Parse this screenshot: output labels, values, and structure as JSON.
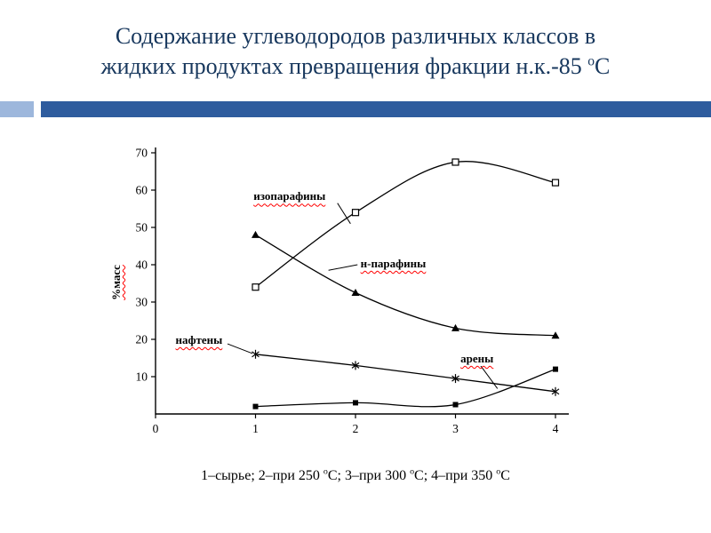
{
  "slide": {
    "title": {
      "line1": "Содержание углеводородов различных классов в",
      "line2_parts": [
        {
          "text": "жидких продуктах превращения фракции н.к.-85 "
        },
        {
          "text": "о",
          "sup": true
        },
        {
          "text": "С"
        }
      ]
    },
    "caption_parts": [
      {
        "text": "1–сырье; 2–при 250 "
      },
      {
        "text": "о",
        "sup": true
      },
      {
        "text": "С; 3–при 300 "
      },
      {
        "text": "о",
        "sup": true
      },
      {
        "text": "С; 4–при 350 "
      },
      {
        "text": "о",
        "sup": true
      },
      {
        "text": "С"
      }
    ]
  },
  "colors": {
    "title": "#17375D",
    "bar_dark": "#2E5C9E",
    "bar_light": "#9DB7DC",
    "line": "#000000",
    "squiggle": "#FF0000"
  },
  "chart_data": {
    "type": "line",
    "x": [
      1,
      2,
      3,
      4
    ],
    "xticks": [
      0,
      1,
      2,
      3,
      4
    ],
    "yticks": [
      10,
      20,
      30,
      40,
      50,
      60,
      70
    ],
    "xlim": [
      0,
      4
    ],
    "ylim": [
      0,
      70
    ],
    "ylabel": "%масс",
    "grid": false,
    "legend": "inline-labels",
    "series": [
      {
        "name": "изопарафины",
        "slug": "isoparaffins",
        "marker": "open-square",
        "values": [
          34,
          54,
          67.5,
          62
        ]
      },
      {
        "name": "н-парафины",
        "slug": "n-paraffins",
        "marker": "filled-triangle",
        "values": [
          48,
          32.5,
          23,
          21
        ]
      },
      {
        "name": "нафтены",
        "slug": "naphthenes",
        "marker": "asterisk",
        "values": [
          16,
          13,
          9.5,
          6
        ]
      },
      {
        "name": "арены",
        "slug": "arenes",
        "marker": "filled-square",
        "values": [
          2,
          3,
          2.5,
          12
        ]
      }
    ],
    "labels": [
      {
        "text": "изопарафины",
        "slug": "isoparaffins",
        "at": [
          0.98,
          58
        ],
        "leader_from": [
          1.82,
          56.5
        ],
        "leader_to": [
          1.95,
          51
        ]
      },
      {
        "text": "н-парафины",
        "slug": "n-paraffins",
        "at": [
          2.05,
          40
        ],
        "leader_from": [
          2.02,
          40
        ],
        "leader_to": [
          1.73,
          38.5
        ]
      },
      {
        "text": "нафтены",
        "slug": "naphthenes",
        "at": [
          0.2,
          19.5
        ],
        "leader_from": [
          0.72,
          18.8
        ],
        "leader_to": [
          0.97,
          16.2
        ]
      },
      {
        "text": "арены",
        "slug": "arenes",
        "at": [
          3.05,
          14.5
        ],
        "leader_from": [
          3.25,
          13
        ],
        "leader_to": [
          3.42,
          6.8
        ]
      }
    ]
  }
}
